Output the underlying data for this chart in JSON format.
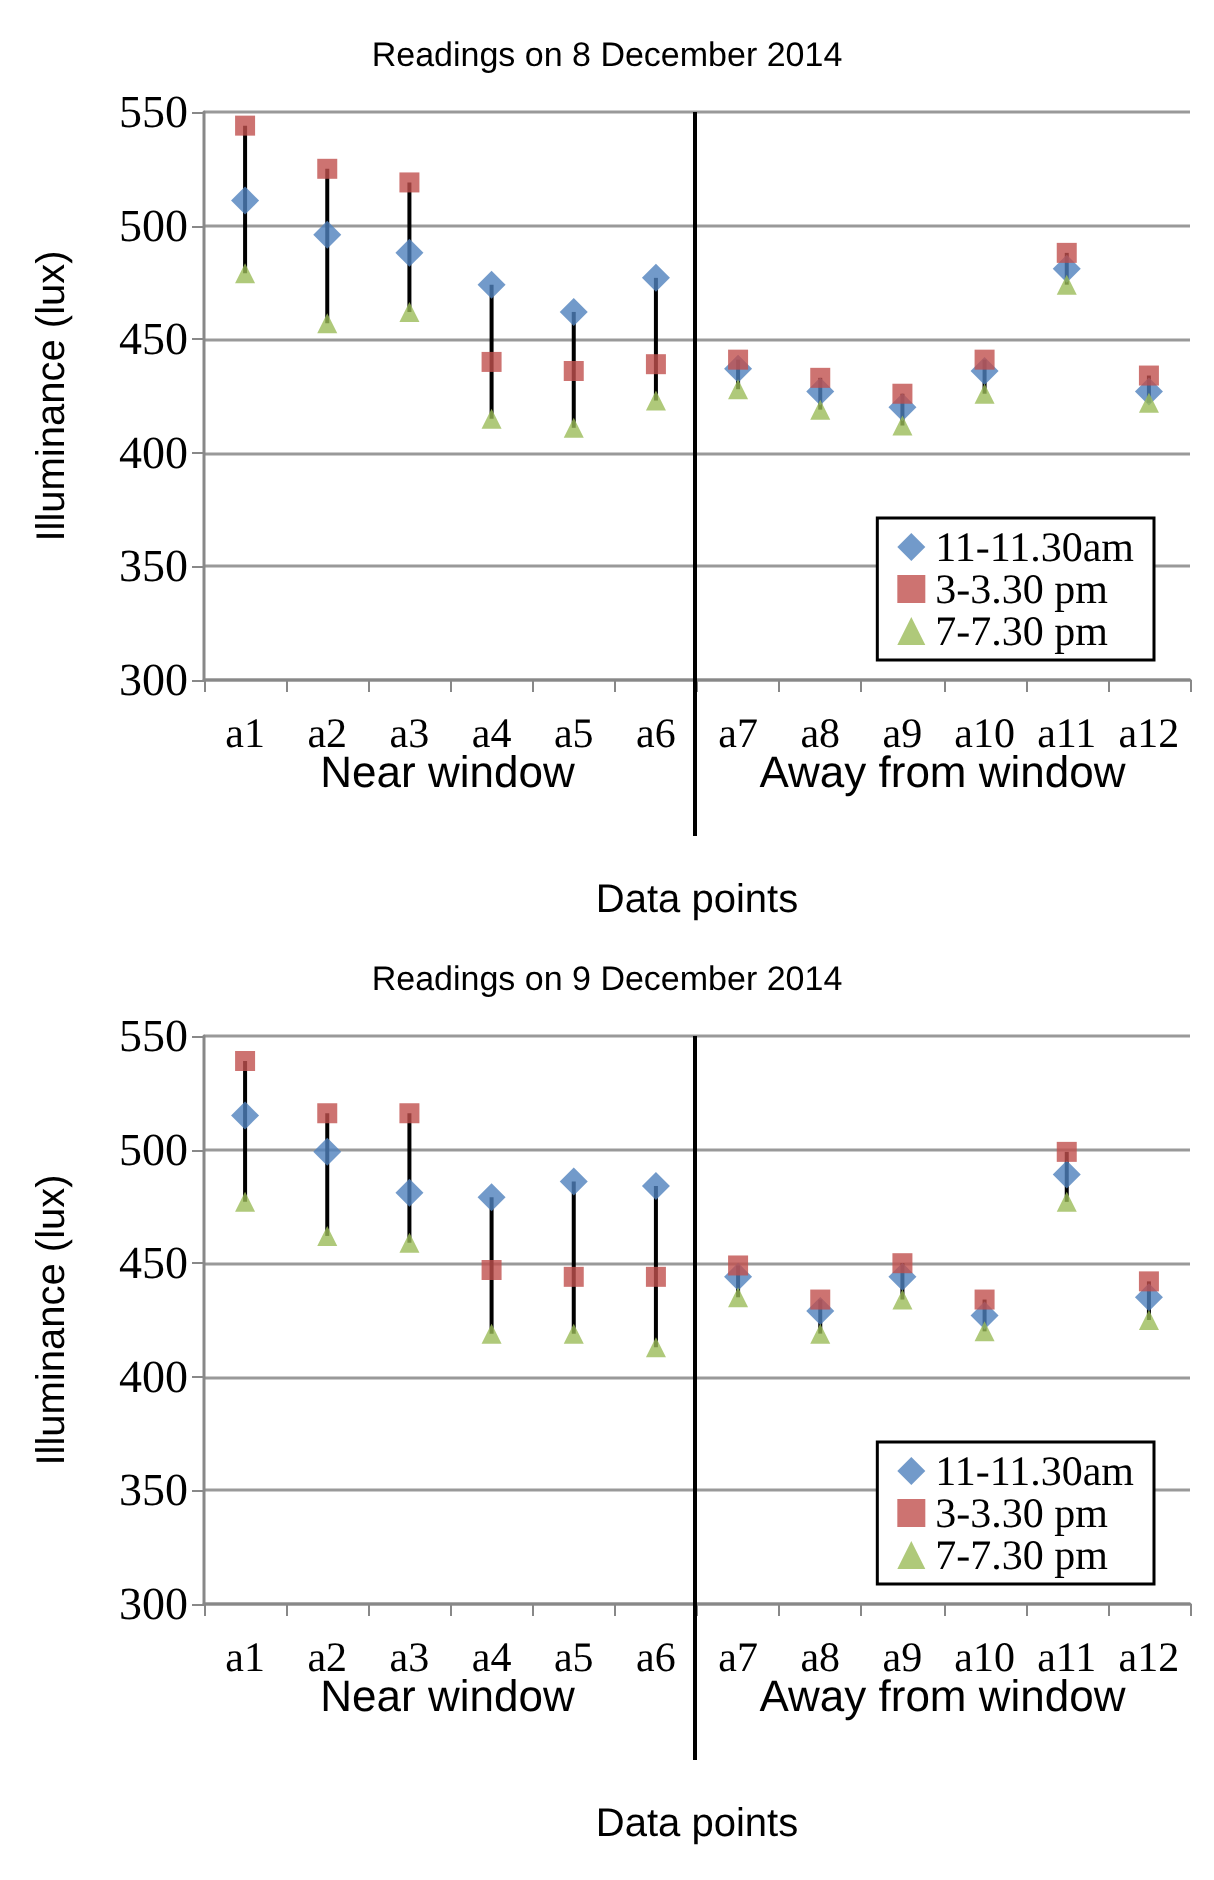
{
  "chart_data": [
    {
      "type": "scatter",
      "title": "Readings on 8 December 2014",
      "xlabel": "Data points",
      "ylabel": "Illuminance (lux)",
      "categories": [
        "a1",
        "a2",
        "a3",
        "a4",
        "a5",
        "a6",
        "a7",
        "a8",
        "a9",
        "a10",
        "a11",
        "a12"
      ],
      "series": [
        {
          "name": "11-11.30am",
          "color": "#4f81bd",
          "marker": "diamond",
          "values": [
            511,
            496,
            488,
            474,
            462,
            477,
            437,
            427,
            420,
            436,
            481,
            427
          ]
        },
        {
          "name": "3-3.30 pm",
          "color": "#c0504d",
          "marker": "square",
          "values": [
            544,
            525,
            519,
            440,
            436,
            439,
            441,
            433,
            426,
            441,
            488,
            434
          ]
        },
        {
          "name": "7-7.30 pm",
          "color": "#9bbb59",
          "marker": "triangle",
          "values": [
            479,
            457,
            462,
            415,
            411,
            423,
            428,
            419,
            412,
            426,
            474,
            422
          ]
        }
      ],
      "ylim": [
        300,
        550
      ],
      "yticks": [
        300,
        350,
        400,
        450,
        500,
        550
      ],
      "grid": "y",
      "legend": "bottom right",
      "ref_lines": [
        {
          "axis": "x",
          "value": "a7",
          "color": "#000000"
        }
      ],
      "annotations": [
        "Near window",
        "Away from window"
      ]
    },
    {
      "type": "scatter",
      "title": "Readings on 9 December 2014",
      "xlabel": "Data points",
      "ylabel": "Illuminance (lux)",
      "categories": [
        "a1",
        "a2",
        "a3",
        "a4",
        "a5",
        "a6",
        "a7",
        "a8",
        "a9",
        "a10",
        "a11",
        "a12"
      ],
      "series": [
        {
          "name": "11-11.30am",
          "color": "#4f81bd",
          "marker": "diamond",
          "values": [
            515,
            499,
            481,
            479,
            486,
            484,
            444,
            429,
            444,
            427,
            489,
            435
          ]
        },
        {
          "name": "3-3.30 pm",
          "color": "#c0504d",
          "marker": "square",
          "values": [
            539,
            516,
            516,
            447,
            444,
            444,
            449,
            434,
            450,
            434,
            499,
            442
          ]
        },
        {
          "name": "7-7.30 pm",
          "color": "#9bbb59",
          "marker": "triangle",
          "values": [
            477,
            462,
            459,
            419,
            419,
            413,
            435,
            419,
            434,
            420,
            477,
            425
          ]
        }
      ],
      "ylim": [
        300,
        550
      ],
      "yticks": [
        300,
        350,
        400,
        450,
        500,
        550
      ],
      "grid": "y",
      "legend": "bottom right",
      "ref_lines": [
        {
          "axis": "x",
          "value": "a7",
          "color": "#000000"
        }
      ],
      "annotations": [
        "Near window",
        "Away from window"
      ]
    }
  ]
}
